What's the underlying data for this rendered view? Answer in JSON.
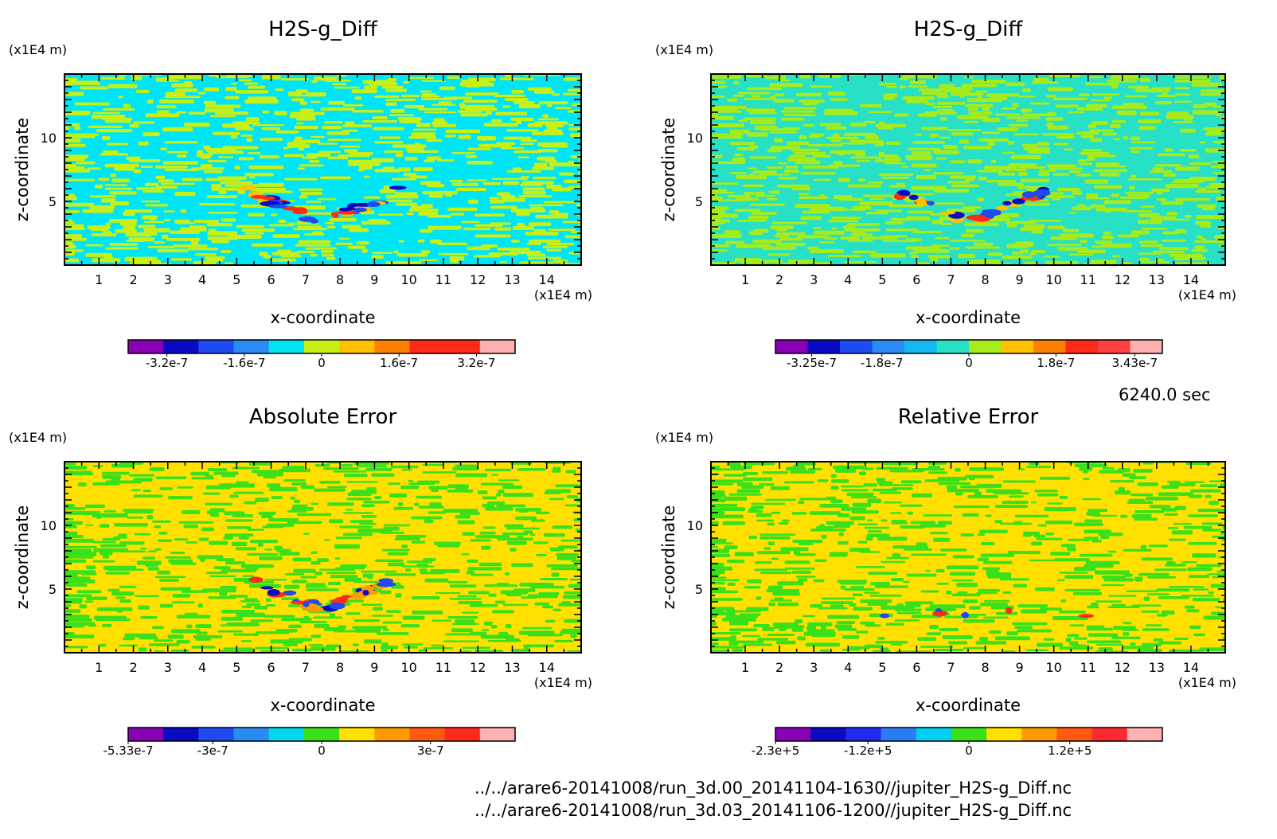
{
  "chart_data": [
    {
      "type": "heatmap",
      "title": "H2S-g_Diff",
      "xlabel": "x-coordinate",
      "ylabel": "z-coordinate",
      "x_unit": "(x1E4 m)",
      "y_unit": "(x1E4 m)",
      "x_ticks": [
        "1",
        "2",
        "3",
        "4",
        "5",
        "6",
        "7",
        "8",
        "9",
        "10",
        "11",
        "12",
        "13",
        "14"
      ],
      "y_ticks": [
        "5",
        "10"
      ],
      "xlim": [
        0,
        15
      ],
      "ylim": [
        0,
        15
      ],
      "colorbar": {
        "colors": [
          "#8a00b4",
          "#0a0ac2",
          "#1f4af0",
          "#2a8cf2",
          "#00e5f5",
          "#c8f016",
          "#ffc000",
          "#ff7f00",
          "#ff2a18",
          "#ff2a18",
          "#ffb0b0"
        ],
        "labels": [
          "-3.2e-7",
          "-1.6e-7",
          "0",
          "1.6e-7",
          "3.2e-7"
        ],
        "label_values": [
          -3.2e-07,
          -1.6e-07,
          0,
          1.6e-07,
          3.2e-07
        ],
        "range": [
          -4e-07,
          4e-07
        ]
      },
      "pattern": {
        "background": [
          "#00e5f5",
          "#c8f016"
        ],
        "signal": [
          "#ff2a18",
          "#1f4af0",
          "#ffc000",
          "#0a0ac2"
        ]
      }
    },
    {
      "type": "heatmap",
      "title": "H2S-g_Diff",
      "xlabel": "x-coordinate",
      "ylabel": "z-coordinate",
      "x_unit": "(x1E4 m)",
      "y_unit": "(x1E4 m)",
      "x_ticks": [
        "1",
        "2",
        "3",
        "4",
        "5",
        "6",
        "7",
        "8",
        "9",
        "10",
        "11",
        "12",
        "13",
        "14"
      ],
      "y_ticks": [
        "5",
        "10"
      ],
      "xlim": [
        0,
        15
      ],
      "ylim": [
        0,
        15
      ],
      "colorbar": {
        "colors": [
          "#8a00b4",
          "#0a0ac2",
          "#1f4af0",
          "#2a8cf2",
          "#16b8f2",
          "#27e0c6",
          "#a7ec1a",
          "#ffc000",
          "#ff7f00",
          "#ff2a18",
          "#ff4040",
          "#ffb0b0"
        ],
        "labels": [
          "-3.25e-7",
          "-1.8e-7",
          "0",
          "1.8e-7",
          "3.43e-7"
        ],
        "label_values": [
          -3.25e-07,
          -1.8e-07,
          0,
          1.8e-07,
          3.43e-07
        ],
        "range": [
          -4e-07,
          4e-07
        ]
      },
      "pattern": {
        "background": [
          "#27e0c6",
          "#a7ec1a"
        ],
        "signal": [
          "#ff2a18",
          "#1f4af0",
          "#ffc000",
          "#0a0ac2"
        ]
      }
    },
    {
      "type": "heatmap",
      "title": "Absolute Error",
      "xlabel": "x-coordinate",
      "ylabel": "z-coordinate",
      "x_unit": "(x1E4 m)",
      "y_unit": "(x1E4 m)",
      "x_ticks": [
        "1",
        "2",
        "3",
        "4",
        "5",
        "6",
        "7",
        "8",
        "9",
        "10",
        "11",
        "12",
        "13",
        "14"
      ],
      "y_ticks": [
        "5",
        "10"
      ],
      "xlim": [
        0,
        15
      ],
      "ylim": [
        0,
        15
      ],
      "colorbar": {
        "colors": [
          "#8a00b4",
          "#0a0ac2",
          "#1f4af0",
          "#2a8cf2",
          "#00d8f0",
          "#3ae01a",
          "#ffe000",
          "#ff9a00",
          "#ff5a10",
          "#ff2a18",
          "#ffb0b0"
        ],
        "labels": [
          "-5.33e-7",
          "-3e-7",
          "0",
          "3e-7"
        ],
        "label_values": [
          -5.33e-07,
          -3e-07,
          0,
          3e-07
        ],
        "range": [
          -5.33e-07,
          5.33e-07
        ]
      },
      "pattern": {
        "background": [
          "#ffe000",
          "#3ae01a"
        ],
        "signal": [
          "#ff2a18",
          "#1f4af0",
          "#ff9a00",
          "#0a0ac2"
        ]
      }
    },
    {
      "type": "heatmap",
      "title": "Relative Error",
      "xlabel": "x-coordinate",
      "ylabel": "z-coordinate",
      "x_unit": "(x1E4 m)",
      "y_unit": "(x1E4 m)",
      "x_ticks": [
        "1",
        "2",
        "3",
        "4",
        "5",
        "6",
        "7",
        "8",
        "9",
        "10",
        "11",
        "12",
        "13",
        "14"
      ],
      "y_ticks": [
        "5",
        "10"
      ],
      "xlim": [
        0,
        15
      ],
      "ylim": [
        0,
        15
      ],
      "colorbar": {
        "colors": [
          "#8a00b4",
          "#0a0ac2",
          "#1f2af0",
          "#2a7cf2",
          "#00d0f0",
          "#3ae01a",
          "#ffe000",
          "#ff9a00",
          "#ff5a10",
          "#ff2a30",
          "#ffb0b0"
        ],
        "labels": [
          "-2.3e+5",
          "-1.2e+5",
          "0",
          "1.2e+5"
        ],
        "label_values": [
          -230000.0,
          -120000.0,
          0,
          120000.0
        ],
        "range": [
          -230000.0,
          230000.0
        ]
      },
      "pattern": {
        "background": [
          "#ffe000",
          "#3ae01a"
        ],
        "signal": [
          "#ff2a18",
          "#1f4af0"
        ]
      }
    }
  ],
  "time_label": "6240.0 sec",
  "file_paths": [
    "../../arare6-20141008/run_3d.00_20141104-1630//jupiter_H2S-g_Diff.nc",
    "../../arare6-20141008/run_3d.03_20141106-1200//jupiter_H2S-g_Diff.nc"
  ]
}
